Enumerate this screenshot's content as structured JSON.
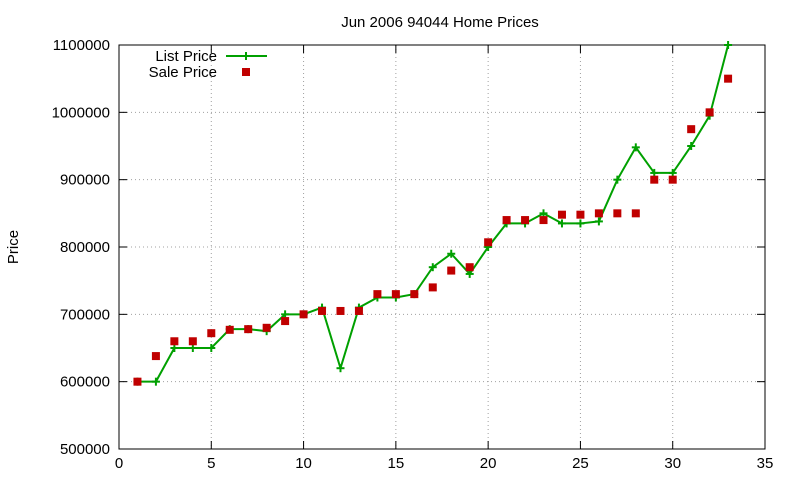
{
  "chart_data": {
    "type": "line",
    "title": "Jun 2006 94044 Home Prices",
    "xlabel": "",
    "ylabel": "Price",
    "xlim": [
      0,
      35
    ],
    "ylim": [
      500000,
      1100000
    ],
    "x_ticks": [
      0,
      5,
      10,
      15,
      20,
      25,
      30,
      35
    ],
    "y_ticks": [
      500000,
      600000,
      700000,
      800000,
      900000,
      1000000,
      1100000
    ],
    "grid": true,
    "legend_position": "top-left",
    "series": [
      {
        "name": "List Price",
        "style": "line-points",
        "marker": "plus",
        "color": "#00a000",
        "x": [
          1,
          2,
          3,
          4,
          5,
          6,
          7,
          8,
          9,
          10,
          11,
          12,
          13,
          14,
          15,
          16,
          17,
          18,
          19,
          20,
          21,
          22,
          23,
          24,
          25,
          26,
          27,
          28,
          29,
          30,
          31,
          32,
          33
        ],
        "y": [
          600000,
          600000,
          650000,
          650000,
          650000,
          678000,
          678000,
          675000,
          700000,
          700000,
          710000,
          620000,
          710000,
          725000,
          725000,
          730000,
          770000,
          790000,
          760000,
          800000,
          835000,
          835000,
          850000,
          835000,
          835000,
          838000,
          900000,
          948000,
          910000,
          910000,
          950000,
          995000,
          1100000
        ]
      },
      {
        "name": "Sale Price",
        "style": "points",
        "marker": "square",
        "color": "#c00000",
        "x": [
          1,
          2,
          3,
          4,
          5,
          6,
          7,
          8,
          9,
          10,
          11,
          12,
          13,
          14,
          15,
          16,
          17,
          18,
          19,
          20,
          21,
          22,
          23,
          24,
          25,
          26,
          27,
          28,
          29,
          30,
          31,
          32,
          33
        ],
        "y": [
          600000,
          638000,
          660000,
          660000,
          672000,
          677000,
          678000,
          680000,
          690000,
          700000,
          705000,
          705000,
          705000,
          730000,
          730000,
          730000,
          740000,
          765000,
          770000,
          807000,
          840000,
          840000,
          840000,
          848000,
          848000,
          850000,
          850000,
          850000,
          900000,
          900000,
          975000,
          1000000,
          1050000
        ]
      }
    ]
  }
}
